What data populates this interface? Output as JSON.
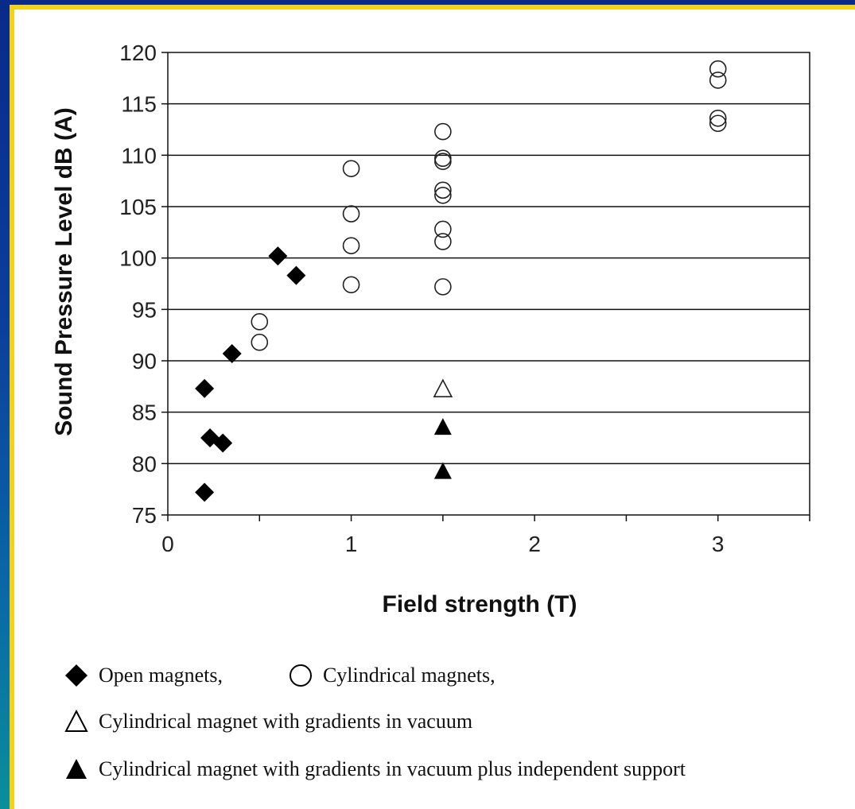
{
  "colors": {
    "background_blue": "#0b3f9a",
    "frame_yellow": "#f2d21a",
    "marker_dark": "#000000"
  },
  "chart_data": {
    "type": "scatter",
    "xlabel": "Field strength (T)",
    "ylabel": "Sound Pressure Level dB (A)",
    "xlim": [
      0,
      3.5
    ],
    "ylim": [
      75,
      120
    ],
    "x_ticks": [
      "0",
      "1",
      "2",
      "3"
    ],
    "y_ticks": [
      "75",
      "80",
      "85",
      "90",
      "95",
      "100",
      "105",
      "110",
      "115",
      "120"
    ],
    "grid": "horizontal",
    "legend_position": "bottom",
    "series": [
      {
        "name": "Open magnets,",
        "marker": "diamond-filled",
        "points": [
          {
            "x": 0.2,
            "y": 87.3
          },
          {
            "x": 0.23,
            "y": 82.5
          },
          {
            "x": 0.3,
            "y": 82.0
          },
          {
            "x": 0.2,
            "y": 77.2
          },
          {
            "x": 0.35,
            "y": 90.7
          },
          {
            "x": 0.6,
            "y": 100.2
          },
          {
            "x": 0.7,
            "y": 98.3
          }
        ]
      },
      {
        "name": "Cylindrical magnets,",
        "marker": "circle-open",
        "points": [
          {
            "x": 0.5,
            "y": 93.8
          },
          {
            "x": 0.5,
            "y": 91.8
          },
          {
            "x": 1.0,
            "y": 108.7
          },
          {
            "x": 1.0,
            "y": 104.3
          },
          {
            "x": 1.0,
            "y": 101.2
          },
          {
            "x": 1.0,
            "y": 97.4
          },
          {
            "x": 1.5,
            "y": 112.3
          },
          {
            "x": 1.5,
            "y": 109.7
          },
          {
            "x": 1.5,
            "y": 109.4
          },
          {
            "x": 1.5,
            "y": 106.6
          },
          {
            "x": 1.5,
            "y": 106.1
          },
          {
            "x": 1.5,
            "y": 102.8
          },
          {
            "x": 1.5,
            "y": 101.6
          },
          {
            "x": 1.5,
            "y": 97.2
          },
          {
            "x": 3.0,
            "y": 118.4
          },
          {
            "x": 3.0,
            "y": 117.3
          },
          {
            "x": 3.0,
            "y": 113.6
          },
          {
            "x": 3.0,
            "y": 113.1
          }
        ]
      },
      {
        "name": "Cylindrical magnet with gradients in vacuum",
        "marker": "triangle-open",
        "points": [
          {
            "x": 1.5,
            "y": 87.2
          }
        ]
      },
      {
        "name": "Cylindrical magnet with gradients in vacuum plus independent support",
        "marker": "triangle-filled",
        "points": [
          {
            "x": 1.5,
            "y": 83.5
          },
          {
            "x": 1.5,
            "y": 79.2
          }
        ]
      }
    ]
  }
}
